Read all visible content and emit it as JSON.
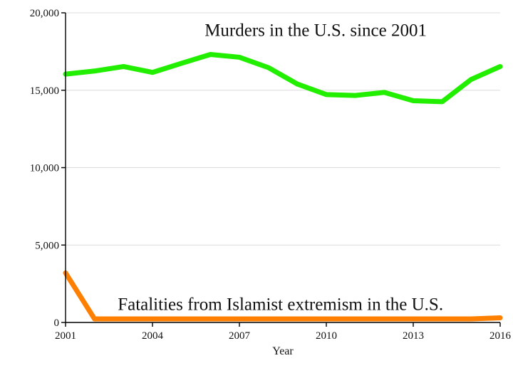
{
  "chart_data": {
    "type": "line",
    "xlabel": "Year",
    "ylabel": "",
    "xlim": [
      2001,
      2016
    ],
    "ylim": [
      0,
      20000
    ],
    "x_ticks": [
      "2001",
      "2004",
      "2007",
      "2010",
      "2013",
      "2016"
    ],
    "y_ticks": [
      "0",
      "5,000",
      "10,000",
      "15,000",
      "20,000"
    ],
    "grid": "horizontal",
    "x": [
      2001,
      2002,
      2003,
      2004,
      2005,
      2006,
      2007,
      2008,
      2009,
      2010,
      2011,
      2012,
      2013,
      2014,
      2015,
      2016
    ],
    "series": [
      {
        "color": "#22ee00",
        "values": [
          16040,
          16240,
          16530,
          16150,
          16740,
          17310,
          17130,
          16460,
          15400,
          14720,
          14660,
          14860,
          14320,
          14260,
          15700,
          16530
        ]
      },
      {
        "color": "#ff8000",
        "values": [
          3200,
          230,
          230,
          230,
          230,
          230,
          230,
          230,
          230,
          230,
          230,
          230,
          230,
          230,
          230,
          300
        ]
      }
    ],
    "annotations": [
      {
        "text": "Murders in the U.S. since 2001",
        "x": 2005.8,
        "y": 18500
      },
      {
        "text": "Fatalities from Islamist extremism in the U.S.",
        "x": 2002.8,
        "y": 800
      }
    ]
  }
}
